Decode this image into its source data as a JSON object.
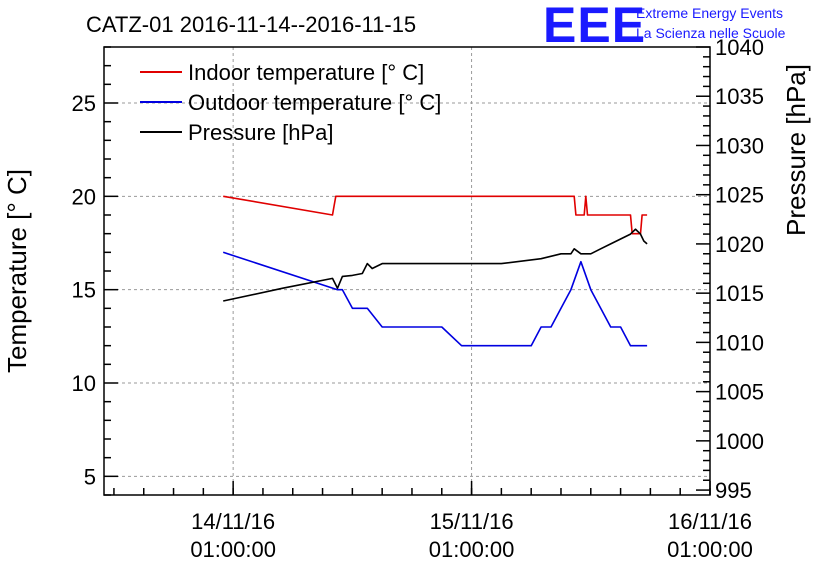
{
  "header": {
    "title": "CATZ-01 2016-11-14--2016-11-15",
    "logo_text": "EEE",
    "logo_line1": "Extreme Energy Events",
    "logo_line2": "La Scienza nelle Scuole"
  },
  "colors": {
    "indoor": "#e00000",
    "outdoor": "#0000e0",
    "pressure": "#000000"
  },
  "chart_data": {
    "type": "line",
    "title": "CATZ-01 2016-11-14--2016-11-15",
    "xlabel": "",
    "ylabel": "Temperature [° C]",
    "ylabel_right": "Pressure [hPa]",
    "xlim": [
      "2016-11-13T12:00",
      "2016-11-16T01:00"
    ],
    "ylim": [
      4,
      28
    ],
    "ylim_right": [
      994.5,
      1040
    ],
    "x_ticks": [
      {
        "x": "2016-11-14T01:00",
        "line1": "14/11/16",
        "line2": "01:00:00"
      },
      {
        "x": "2016-11-15T01:00",
        "line1": "15/11/16",
        "line2": "01:00:00"
      },
      {
        "x": "2016-11-16T01:00",
        "line1": "16/11/16",
        "line2": "01:00:00"
      }
    ],
    "y_ticks": [
      "5",
      "10",
      "15",
      "20",
      "25"
    ],
    "y_ticks_right": [
      "995",
      "1000",
      "1005",
      "1010",
      "1015",
      "1020",
      "1025",
      "1030",
      "1035",
      "1040"
    ],
    "grid": true,
    "legend_position": "top-left",
    "series": [
      {
        "name": "Indoor temperature [° C]",
        "axis": "left",
        "x": [
          "2016-11-14T00:00",
          "2016-11-14T11:00",
          "2016-11-14T11:10",
          "2016-11-14T11:20",
          "2016-11-14T12:00",
          "2016-11-14T16:00",
          "2016-11-14T20:00",
          "2016-11-15T00:00",
          "2016-11-15T04:00",
          "2016-11-15T08:00",
          "2016-11-15T11:20",
          "2016-11-15T11:30",
          "2016-11-15T12:00",
          "2016-11-15T12:20",
          "2016-11-15T12:30",
          "2016-11-15T12:40",
          "2016-11-15T13:00",
          "2016-11-15T15:00",
          "2016-11-15T17:00",
          "2016-11-15T17:10",
          "2016-11-15T18:00",
          "2016-11-15T18:10",
          "2016-11-15T18:40"
        ],
        "values": [
          20,
          19,
          19.5,
          20,
          20,
          20,
          20,
          20,
          20,
          20,
          20,
          19,
          19,
          19,
          20,
          19,
          19,
          19,
          19,
          18,
          18,
          19,
          19
        ]
      },
      {
        "name": "Outdoor temperature [° C]",
        "axis": "left",
        "x": [
          "2016-11-14T00:00",
          "2016-11-14T11:30",
          "2016-11-14T12:00",
          "2016-11-14T13:00",
          "2016-11-14T13:30",
          "2016-11-14T14:30",
          "2016-11-14T16:00",
          "2016-11-14T18:00",
          "2016-11-14T19:00",
          "2016-11-14T20:00",
          "2016-11-14T22:00",
          "2016-11-15T00:00",
          "2016-11-15T02:00",
          "2016-11-15T04:00",
          "2016-11-15T06:00",
          "2016-11-15T07:00",
          "2016-11-15T08:00",
          "2016-11-15T09:00",
          "2016-11-15T10:00",
          "2016-11-15T11:00",
          "2016-11-15T12:00",
          "2016-11-15T13:00",
          "2016-11-15T14:00",
          "2016-11-15T15:00",
          "2016-11-15T16:00",
          "2016-11-15T17:00",
          "2016-11-15T18:00",
          "2016-11-15T18:40"
        ],
        "values": [
          17,
          15,
          15,
          14,
          14,
          14,
          13,
          13,
          13,
          13,
          13,
          12,
          12,
          12,
          12,
          12,
          13,
          13,
          14,
          15,
          16.5,
          15,
          14,
          13,
          13,
          12,
          12,
          12
        ]
      },
      {
        "name": "Pressure [hPa]",
        "axis": "right",
        "x": [
          "2016-11-14T00:00",
          "2016-11-14T06:00",
          "2016-11-14T11:00",
          "2016-11-14T11:30",
          "2016-11-14T12:00",
          "2016-11-14T13:00",
          "2016-11-14T14:00",
          "2016-11-14T14:30",
          "2016-11-14T15:00",
          "2016-11-14T16:00",
          "2016-11-14T20:00",
          "2016-11-15T00:00",
          "2016-11-15T04:00",
          "2016-11-15T08:00",
          "2016-11-15T10:00",
          "2016-11-15T11:00",
          "2016-11-15T11:20",
          "2016-11-15T12:00",
          "2016-11-15T13:00",
          "2016-11-15T14:00",
          "2016-11-15T15:00",
          "2016-11-15T16:00",
          "2016-11-15T17:00",
          "2016-11-15T17:30",
          "2016-11-15T18:00",
          "2016-11-15T18:20",
          "2016-11-15T18:40"
        ],
        "values": [
          1014.2,
          1015.5,
          1016.5,
          1015.5,
          1016.7,
          1016.8,
          1017.0,
          1018.0,
          1017.5,
          1018.0,
          1018.0,
          1018.0,
          1018.0,
          1018.5,
          1019.0,
          1019.0,
          1019.5,
          1019.0,
          1019.0,
          1019.5,
          1020.0,
          1020.5,
          1021.0,
          1021.5,
          1021.0,
          1020.3,
          1020.0
        ]
      }
    ]
  }
}
